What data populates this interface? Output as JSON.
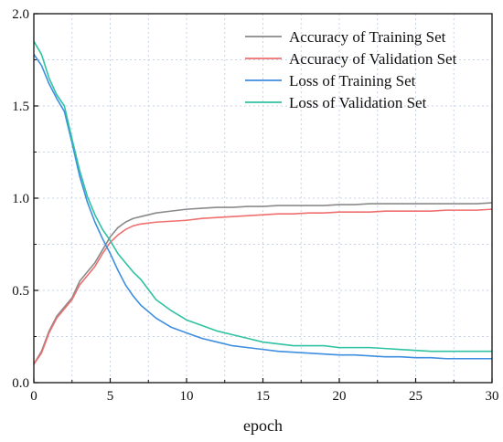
{
  "chart_data": {
    "type": "line",
    "title": "",
    "xlabel": "epoch",
    "ylabel": "",
    "xlim": [
      0,
      30
    ],
    "ylim": [
      0,
      2.0
    ],
    "x_ticks": [
      0,
      5,
      10,
      15,
      20,
      25,
      30
    ],
    "y_ticks": [
      0.0,
      0.5,
      1.0,
      1.5,
      2.0
    ],
    "x_tick_labels": [
      "0",
      "5",
      "10",
      "15",
      "20",
      "25",
      "30"
    ],
    "y_tick_labels": [
      "0.0",
      "0.5",
      "1.0",
      "1.5",
      "2.0"
    ],
    "grid": true,
    "legend_position": "top-right",
    "series": [
      {
        "name": "Accuracy of Training Set",
        "color": "#8a8a8a",
        "x": [
          0,
          0.5,
          1,
          1.5,
          2,
          2.5,
          3,
          3.5,
          4,
          4.5,
          5,
          5.5,
          6,
          6.5,
          7,
          8,
          9,
          10,
          11,
          12,
          13,
          14,
          15,
          16,
          17,
          18,
          19,
          20,
          21,
          22,
          23,
          24,
          25,
          26,
          27,
          28,
          29,
          30
        ],
        "values": [
          0.1,
          0.17,
          0.28,
          0.36,
          0.41,
          0.46,
          0.55,
          0.6,
          0.65,
          0.72,
          0.79,
          0.84,
          0.87,
          0.89,
          0.9,
          0.92,
          0.93,
          0.94,
          0.945,
          0.95,
          0.95,
          0.955,
          0.955,
          0.96,
          0.96,
          0.96,
          0.96,
          0.965,
          0.965,
          0.97,
          0.97,
          0.97,
          0.97,
          0.97,
          0.97,
          0.97,
          0.97,
          0.975
        ]
      },
      {
        "name": "Accuracy of Validation Set",
        "color": "#ef6f6f",
        "x": [
          0,
          0.5,
          1,
          1.5,
          2,
          2.5,
          3,
          3.5,
          4,
          4.5,
          5,
          5.5,
          6,
          6.5,
          7,
          8,
          9,
          10,
          11,
          12,
          13,
          14,
          15,
          16,
          17,
          18,
          19,
          20,
          21,
          22,
          23,
          24,
          25,
          26,
          27,
          28,
          29,
          30
        ],
        "values": [
          0.1,
          0.16,
          0.27,
          0.35,
          0.4,
          0.45,
          0.53,
          0.58,
          0.63,
          0.7,
          0.76,
          0.8,
          0.83,
          0.85,
          0.86,
          0.87,
          0.875,
          0.88,
          0.89,
          0.895,
          0.9,
          0.905,
          0.91,
          0.915,
          0.915,
          0.92,
          0.92,
          0.925,
          0.925,
          0.925,
          0.93,
          0.93,
          0.93,
          0.93,
          0.935,
          0.935,
          0.935,
          0.94
        ]
      },
      {
        "name": "Loss of Training Set",
        "color": "#3e8ee0",
        "x": [
          0,
          0.5,
          1,
          1.5,
          2,
          2.5,
          3,
          3.5,
          4,
          4.5,
          5,
          5.5,
          6,
          6.5,
          7,
          8,
          9,
          10,
          11,
          12,
          13,
          14,
          15,
          16,
          17,
          18,
          19,
          20,
          21,
          22,
          23,
          24,
          25,
          26,
          27,
          28,
          29,
          30
        ],
        "values": [
          1.78,
          1.72,
          1.62,
          1.54,
          1.47,
          1.3,
          1.12,
          0.98,
          0.87,
          0.78,
          0.7,
          0.61,
          0.53,
          0.47,
          0.42,
          0.35,
          0.3,
          0.27,
          0.24,
          0.22,
          0.2,
          0.19,
          0.18,
          0.17,
          0.165,
          0.16,
          0.155,
          0.15,
          0.15,
          0.145,
          0.14,
          0.14,
          0.135,
          0.135,
          0.13,
          0.13,
          0.13,
          0.13
        ]
      },
      {
        "name": "Loss of Validation Set",
        "color": "#2fc2a2",
        "x": [
          0,
          0.5,
          1,
          1.5,
          2,
          2.5,
          3,
          3.5,
          4,
          4.5,
          5,
          5.5,
          6,
          6.5,
          7,
          8,
          9,
          10,
          11,
          12,
          13,
          14,
          15,
          16,
          17,
          18,
          19,
          20,
          21,
          22,
          23,
          24,
          25,
          26,
          27,
          28,
          29,
          30
        ],
        "values": [
          1.85,
          1.78,
          1.65,
          1.56,
          1.5,
          1.32,
          1.15,
          1.01,
          0.91,
          0.83,
          0.77,
          0.7,
          0.65,
          0.6,
          0.56,
          0.45,
          0.39,
          0.34,
          0.31,
          0.28,
          0.26,
          0.24,
          0.22,
          0.21,
          0.2,
          0.2,
          0.2,
          0.19,
          0.19,
          0.19,
          0.185,
          0.18,
          0.175,
          0.17,
          0.17,
          0.17,
          0.17,
          0.17
        ]
      }
    ]
  }
}
